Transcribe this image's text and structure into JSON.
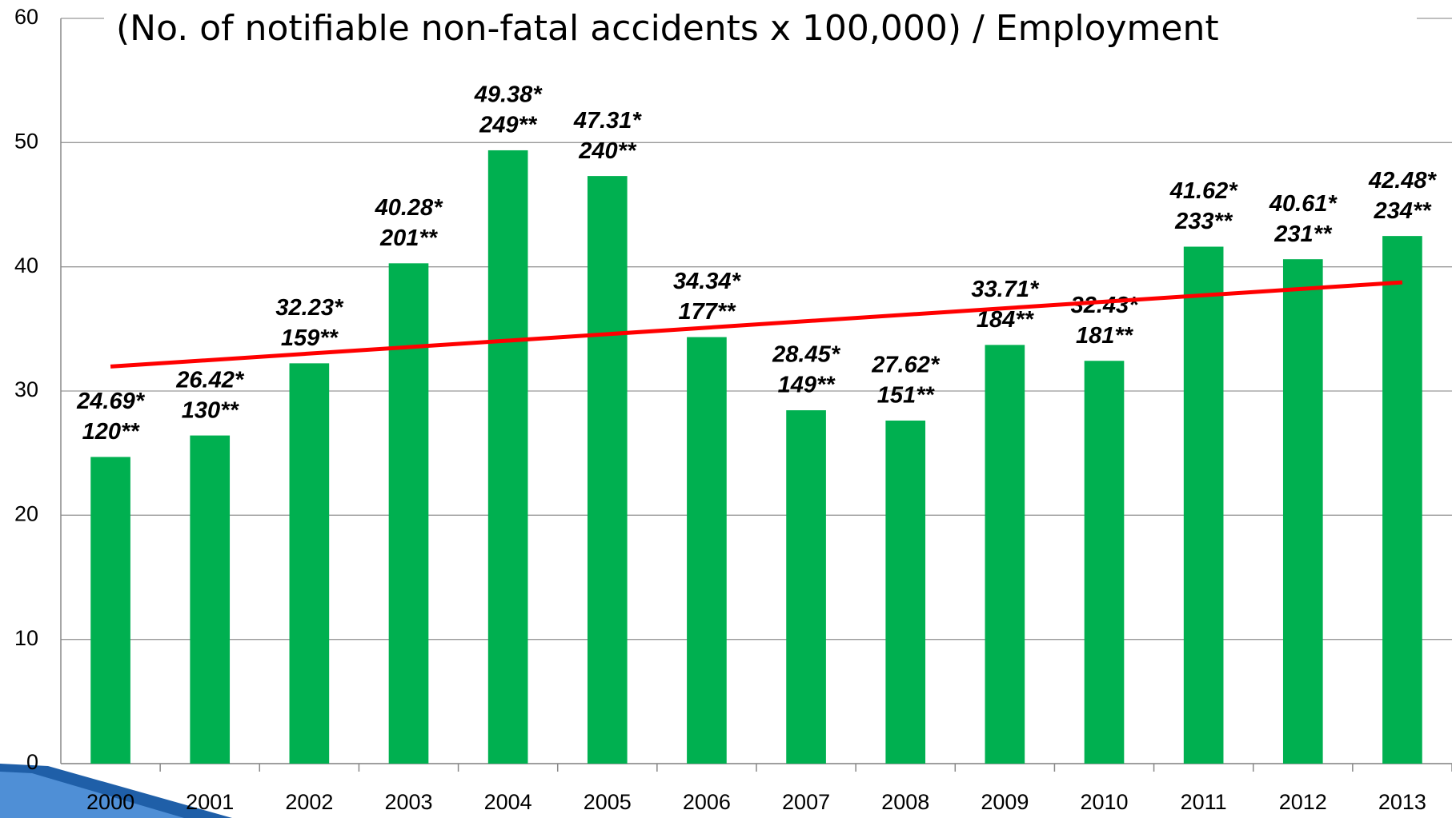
{
  "chart_data": {
    "type": "bar",
    "title": "(No. of notifiable non-fatal accidents x 100,000) / Employment",
    "categories": [
      "2000",
      "2001",
      "2002",
      "2003",
      "2004",
      "2005",
      "2006",
      "2007",
      "2008",
      "2009",
      "2010",
      "2011",
      "2012",
      "2013"
    ],
    "values": [
      24.69,
      26.42,
      32.23,
      40.28,
      49.38,
      47.31,
      34.34,
      28.45,
      27.62,
      33.71,
      32.43,
      41.62,
      40.61,
      42.48
    ],
    "value_labels": [
      "24.69*",
      "26.42*",
      "32.23*",
      "40.28*",
      "49.38*",
      "47.31*",
      "34.34*",
      "28.45*",
      "27.62*",
      "33.71*",
      "32.43*",
      "41.62*",
      "40.61*",
      "42.48*"
    ],
    "count_labels": [
      "120**",
      "130**",
      "159**",
      "201**",
      "249**",
      "240**",
      "177**",
      "149**",
      "151**",
      "184**",
      "181**",
      "233**",
      "231**",
      "234**"
    ],
    "color": "#00b050",
    "trendline": {
      "color": "#ff0000",
      "values": [
        31.97,
        38.75
      ]
    },
    "ylim": [
      0,
      60
    ],
    "yticks": [
      0,
      10,
      20,
      30,
      40,
      50,
      60
    ],
    "grid": true
  }
}
